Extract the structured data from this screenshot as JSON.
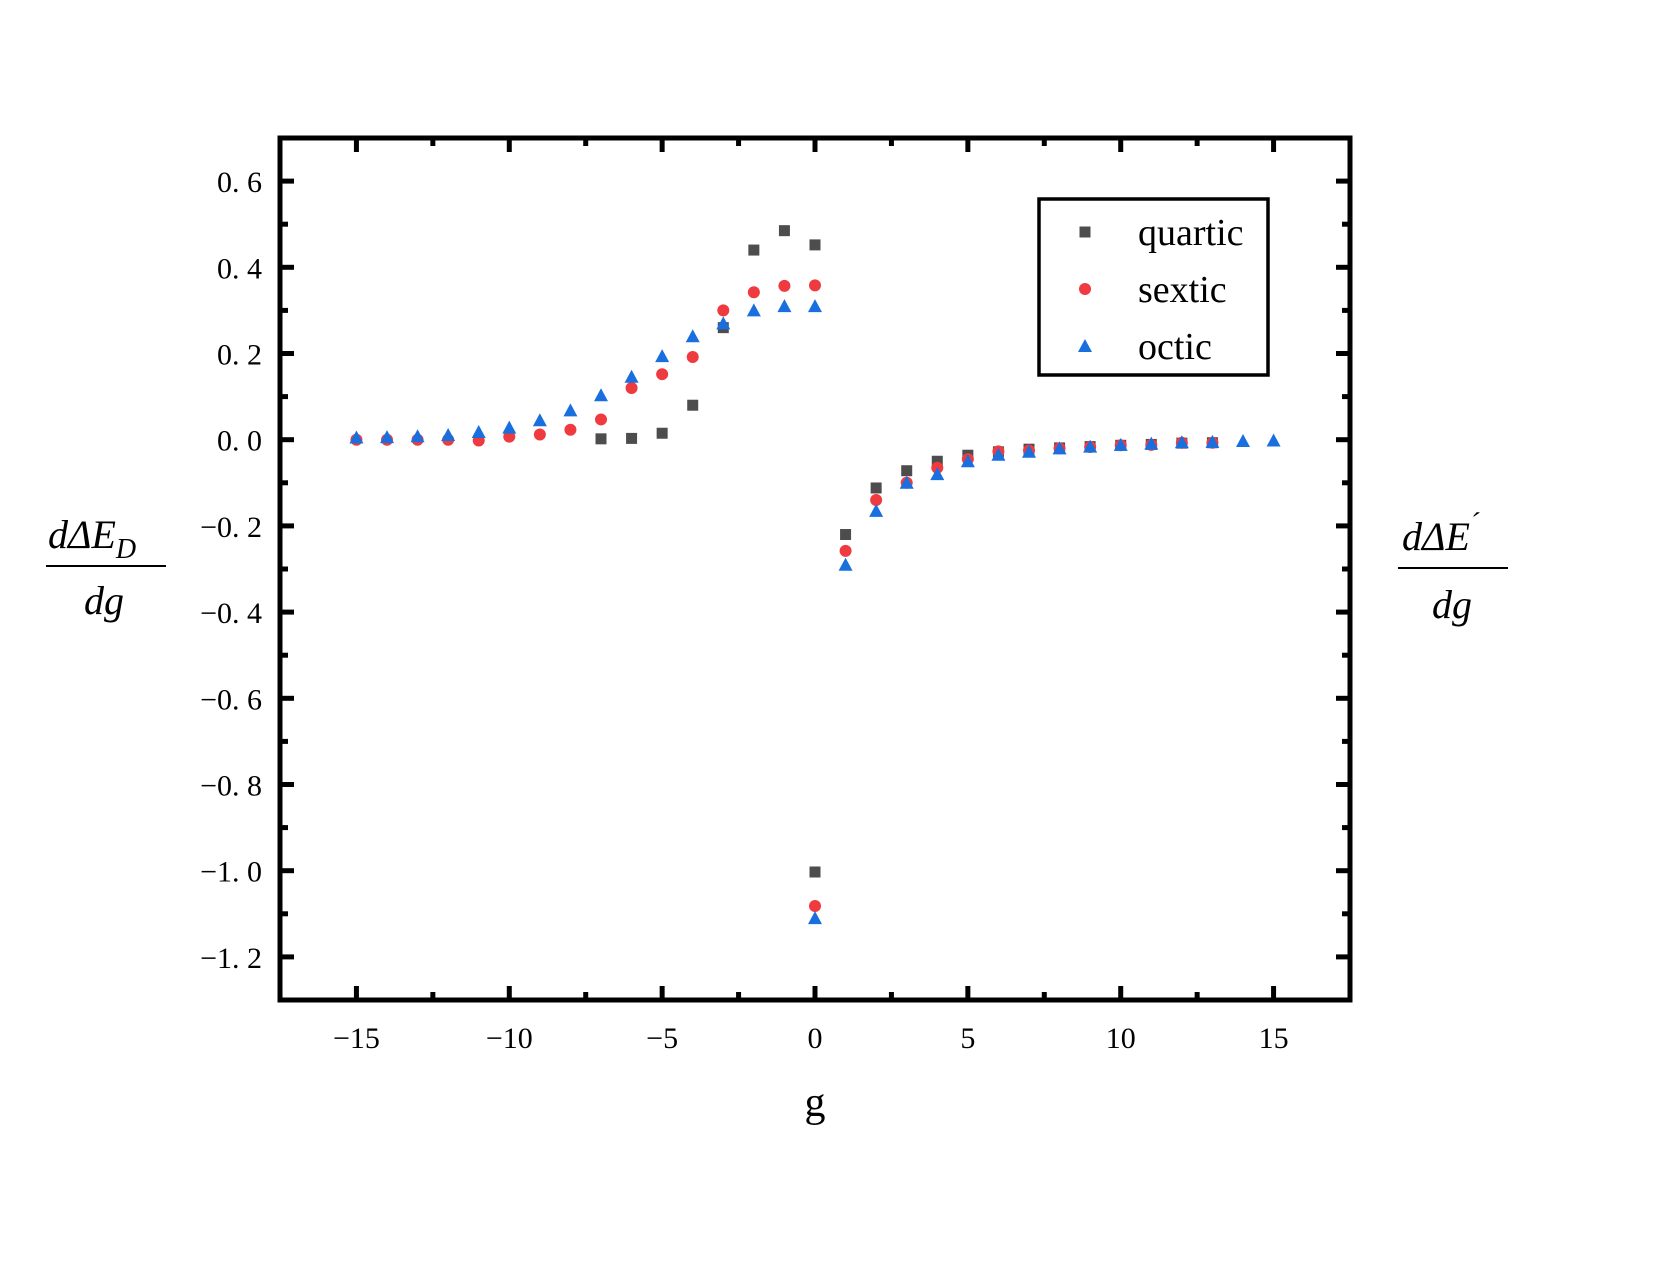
{
  "chart_data": {
    "type": "scatter",
    "title": "",
    "xlabel": "g",
    "ylabel_left": {
      "numerator": "dΔE",
      "subscript": "D",
      "denominator": "dg"
    },
    "ylabel_right": {
      "numerator": "dΔE",
      "superscript": "´",
      "denominator": "dg"
    },
    "xlim": [
      -17.5,
      17.5
    ],
    "ylim": [
      -1.3,
      0.7
    ],
    "xticks": [
      -15,
      -10,
      -5,
      0,
      5,
      10,
      15
    ],
    "xtick_labels": [
      "−15",
      "−10",
      "−5",
      "0",
      "5",
      "10",
      "15"
    ],
    "yticks": [
      0.6,
      0.4,
      0.2,
      0.0,
      -0.2,
      -0.4,
      -0.6,
      -0.8,
      -1.0,
      -1.2
    ],
    "ytick_labels": [
      "0. 6",
      "0. 4",
      "0. 2",
      "0. 0",
      "−0. 2",
      "−0. 4",
      "−0. 6",
      "−0. 8",
      "−1. 0",
      "−1. 2"
    ],
    "grid": false,
    "legend_position": "top-right",
    "series": [
      {
        "name": "quartic",
        "marker": "square",
        "color": "#4d4d4d",
        "x": [
          -7,
          -6,
          -5,
          -4,
          -3,
          -2,
          -1,
          0,
          0,
          1,
          2,
          3,
          4,
          5,
          6,
          7,
          8,
          9,
          10,
          11,
          12,
          13
        ],
        "y": [
          0.002,
          0.003,
          0.015,
          0.08,
          0.26,
          0.44,
          0.485,
          0.452,
          -1.003,
          -0.22,
          -0.112,
          -0.072,
          -0.05,
          -0.036,
          -0.028,
          -0.022,
          -0.019,
          -0.016,
          -0.013,
          -0.011,
          -0.008,
          -0.007
        ]
      },
      {
        "name": "sextic",
        "marker": "circle",
        "color": "#ef3a3f",
        "x": [
          -15,
          -14,
          -13,
          -12,
          -11,
          -10,
          -9,
          -8,
          -7,
          -6,
          -5,
          -4,
          -3,
          -2,
          -1,
          0,
          0,
          1,
          2,
          3,
          4,
          5,
          6,
          7,
          8,
          9,
          10,
          11,
          12,
          13
        ],
        "y": [
          0.0,
          0.0,
          0.0,
          0.0,
          -0.002,
          0.007,
          0.012,
          0.023,
          0.047,
          0.12,
          0.152,
          0.192,
          0.3,
          0.342,
          0.357,
          0.358,
          -1.082,
          -0.258,
          -0.14,
          -0.1,
          -0.065,
          -0.045,
          -0.027,
          -0.025,
          -0.02,
          -0.017,
          -0.013,
          -0.012,
          -0.007,
          -0.007
        ]
      },
      {
        "name": "octic",
        "marker": "triangle",
        "color": "#1a6fdf",
        "x": [
          -15,
          -14,
          -13,
          -12,
          -11,
          -10,
          -9,
          -8,
          -7,
          -6,
          -5,
          -4,
          -3,
          -2,
          -1,
          0,
          0,
          1,
          2,
          3,
          4,
          5,
          6,
          7,
          8,
          9,
          10,
          11,
          12,
          13,
          14,
          15
        ],
        "y": [
          0.005,
          0.006,
          0.008,
          0.011,
          0.018,
          0.028,
          0.045,
          0.068,
          0.103,
          0.146,
          0.194,
          0.24,
          0.27,
          0.3,
          0.31,
          0.31,
          -1.11,
          -0.29,
          -0.165,
          -0.1,
          -0.08,
          -0.05,
          -0.035,
          -0.028,
          -0.02,
          -0.016,
          -0.012,
          -0.009,
          -0.006,
          -0.005,
          -0.003,
          -0.002
        ]
      }
    ]
  }
}
